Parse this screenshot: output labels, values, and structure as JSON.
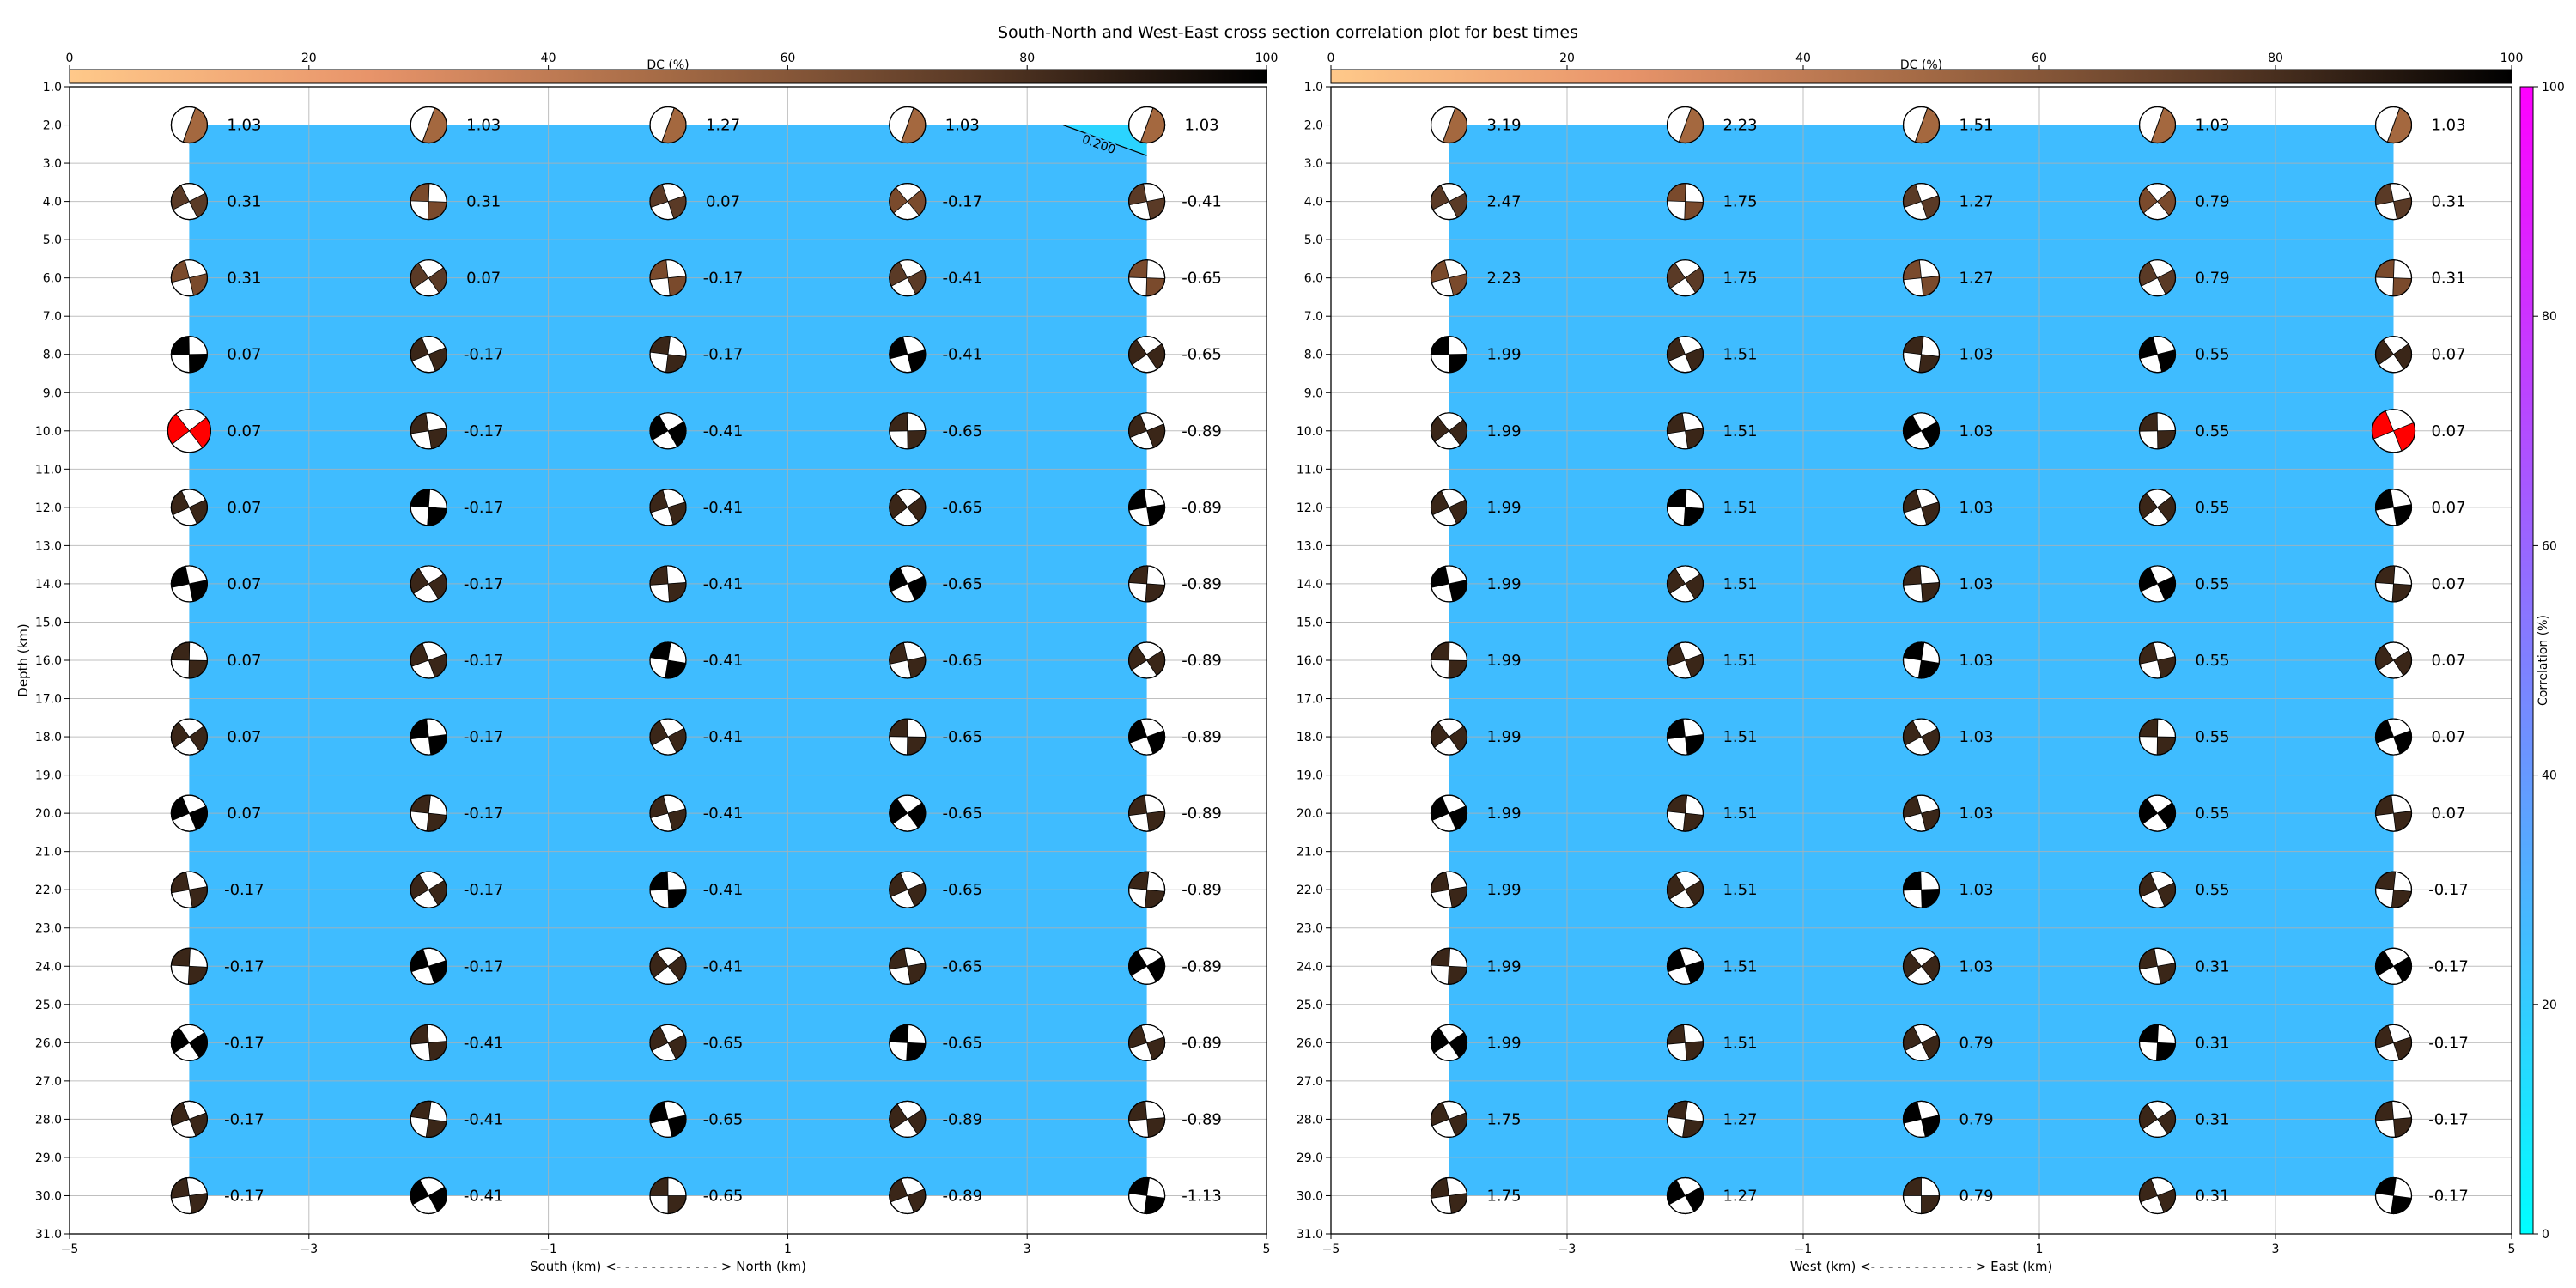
{
  "figure": {
    "title": "South-North and West-East cross section correlation plot for best times",
    "dc_colorbar_label": "DC (%)",
    "dc_colorbar_ticks": [
      0,
      20,
      40,
      60,
      80,
      100
    ],
    "correlation_colorbar_label": "Correlation (%)",
    "correlation_colorbar_ticks": [
      0,
      20,
      40,
      60,
      80,
      100
    ],
    "colors": {
      "field": "#3fbcff",
      "best_beachball": "#ff0000",
      "correlation_cmap_low": "#00ffff",
      "correlation_cmap_high": "#ff00ff",
      "dc_cmap_low": "#ffc98a",
      "dc_cmap_high": "#000000"
    }
  },
  "chart_data": [
    {
      "type": "heatmap",
      "panel": "south-north",
      "xlabel": "South (km) <- - - - - - - - - - - - > North (km)",
      "ylabel": "Depth (km)",
      "xlim": [
        -5,
        5
      ],
      "ylim": [
        31,
        1
      ],
      "y_inverted": true,
      "grid": true,
      "x_ticks": [
        -5,
        -3,
        -1,
        1,
        3,
        5
      ],
      "y_ticks": [
        1,
        2,
        3,
        4,
        5,
        6,
        7,
        8,
        9,
        10,
        11,
        12,
        13,
        14,
        15,
        16,
        17,
        18,
        19,
        20,
        21,
        22,
        23,
        24,
        25,
        26,
        27,
        28,
        29,
        30,
        31
      ],
      "x_positions": [
        -4,
        -2,
        0,
        2,
        4
      ],
      "depths": [
        2,
        4,
        6,
        8,
        10,
        12,
        14,
        16,
        18,
        20,
        22,
        24,
        26,
        28,
        30
      ],
      "labels": [
        [
          "1.03",
          "1.03",
          "1.27",
          "1.03",
          "1.03"
        ],
        [
          "0.31",
          "0.31",
          "0.07",
          "-0.17",
          "-0.41"
        ],
        [
          "0.31",
          "0.07",
          "-0.17",
          "-0.41",
          "-0.65"
        ],
        [
          "0.07",
          "-0.17",
          "-0.17",
          "-0.41",
          "-0.65"
        ],
        [
          "0.07",
          "-0.17",
          "-0.41",
          "-0.65",
          "-0.89"
        ],
        [
          "0.07",
          "-0.17",
          "-0.41",
          "-0.65",
          "-0.89"
        ],
        [
          "0.07",
          "-0.17",
          "-0.41",
          "-0.65",
          "-0.89"
        ],
        [
          "0.07",
          "-0.17",
          "-0.41",
          "-0.65",
          "-0.89"
        ],
        [
          "0.07",
          "-0.17",
          "-0.41",
          "-0.65",
          "-0.89"
        ],
        [
          "0.07",
          "-0.17",
          "-0.41",
          "-0.65",
          "-0.89"
        ],
        [
          "-0.17",
          "-0.17",
          "-0.41",
          "-0.65",
          "-0.89"
        ],
        [
          "-0.17",
          "-0.17",
          "-0.41",
          "-0.65",
          "-0.89"
        ],
        [
          "-0.17",
          "-0.41",
          "-0.65",
          "-0.65",
          "-0.89"
        ],
        [
          "-0.17",
          "-0.41",
          "-0.65",
          "-0.89",
          "-0.89"
        ],
        [
          "-0.17",
          "-0.41",
          "-0.65",
          "-0.89",
          "-1.13"
        ]
      ],
      "best": {
        "x": -4,
        "depth": 10
      },
      "field_extent": {
        "x": [
          -4,
          4
        ],
        "depth": [
          2,
          30
        ]
      },
      "correlation_field": 20,
      "contour": {
        "label": "0.200",
        "level": 0.2
      }
    },
    {
      "type": "heatmap",
      "panel": "west-east",
      "xlabel": "West (km) <- - - - - - - - - - - - > East (km)",
      "ylabel": "",
      "xlim": [
        -5,
        5
      ],
      "ylim": [
        31,
        1
      ],
      "y_inverted": true,
      "grid": true,
      "x_ticks": [
        -5,
        -3,
        -1,
        1,
        3,
        5
      ],
      "y_ticks": [
        1,
        2,
        3,
        4,
        5,
        6,
        7,
        8,
        9,
        10,
        11,
        12,
        13,
        14,
        15,
        16,
        17,
        18,
        19,
        20,
        21,
        22,
        23,
        24,
        25,
        26,
        27,
        28,
        29,
        30,
        31
      ],
      "x_positions": [
        -4,
        -2,
        0,
        2,
        4
      ],
      "depths": [
        2,
        4,
        6,
        8,
        10,
        12,
        14,
        16,
        18,
        20,
        22,
        24,
        26,
        28,
        30
      ],
      "labels": [
        [
          "3.19",
          "2.23",
          "1.51",
          "1.03",
          "1.03"
        ],
        [
          "2.47",
          "1.75",
          "1.27",
          "0.79",
          "0.31"
        ],
        [
          "2.23",
          "1.75",
          "1.27",
          "0.79",
          "0.31"
        ],
        [
          "1.99",
          "1.51",
          "1.03",
          "0.55",
          "0.07"
        ],
        [
          "1.99",
          "1.51",
          "1.03",
          "0.55",
          "0.07"
        ],
        [
          "1.99",
          "1.51",
          "1.03",
          "0.55",
          "0.07"
        ],
        [
          "1.99",
          "1.51",
          "1.03",
          "0.55",
          "0.07"
        ],
        [
          "1.99",
          "1.51",
          "1.03",
          "0.55",
          "0.07"
        ],
        [
          "1.99",
          "1.51",
          "1.03",
          "0.55",
          "0.07"
        ],
        [
          "1.99",
          "1.51",
          "1.03",
          "0.55",
          "0.07"
        ],
        [
          "1.99",
          "1.51",
          "1.03",
          "0.55",
          "-0.17"
        ],
        [
          "1.99",
          "1.51",
          "1.03",
          "0.31",
          "-0.17"
        ],
        [
          "1.99",
          "1.51",
          "0.79",
          "0.31",
          "-0.17"
        ],
        [
          "1.75",
          "1.27",
          "0.79",
          "0.31",
          "-0.17"
        ],
        [
          "1.75",
          "1.27",
          "0.79",
          "0.31",
          "-0.17"
        ]
      ],
      "best": {
        "x": 4,
        "depth": 10
      },
      "field_extent": {
        "x": [
          -4,
          4
        ],
        "depth": [
          2,
          30
        ]
      },
      "correlation_field": 20
    }
  ]
}
